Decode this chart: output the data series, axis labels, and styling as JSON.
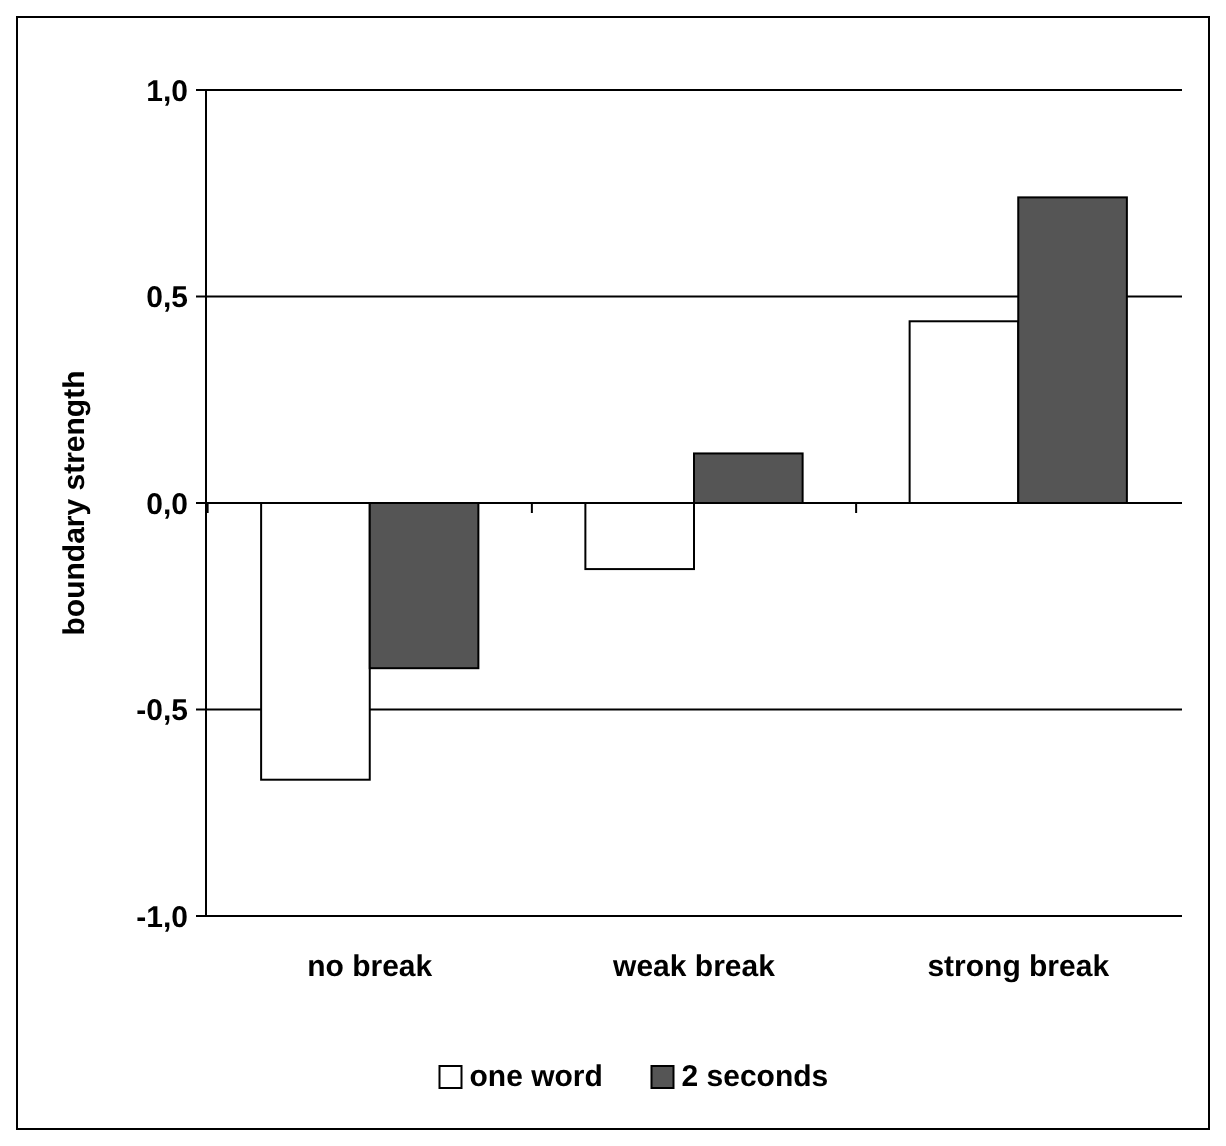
{
  "chart_data": {
    "type": "bar",
    "ylabel": "boundary strength",
    "categories": [
      "no break",
      "weak break",
      "strong break"
    ],
    "series": [
      {
        "name": "one word",
        "color": "#ffffff",
        "values": [
          -0.67,
          -0.16,
          0.44
        ]
      },
      {
        "name": "2 seconds",
        "color": "#555555",
        "values": [
          -0.4,
          0.12,
          0.74
        ]
      }
    ],
    "ylim": [
      -1,
      1
    ],
    "yticks": [
      {
        "value": -1,
        "label": "-1,0"
      },
      {
        "value": -0.5,
        "label": "-0,5"
      },
      {
        "value": 0,
        "label": "0,0"
      },
      {
        "value": 0.5,
        "label": "0,5"
      },
      {
        "value": 1,
        "label": "1,0"
      }
    ],
    "grid": "y",
    "legend": "bottom"
  }
}
